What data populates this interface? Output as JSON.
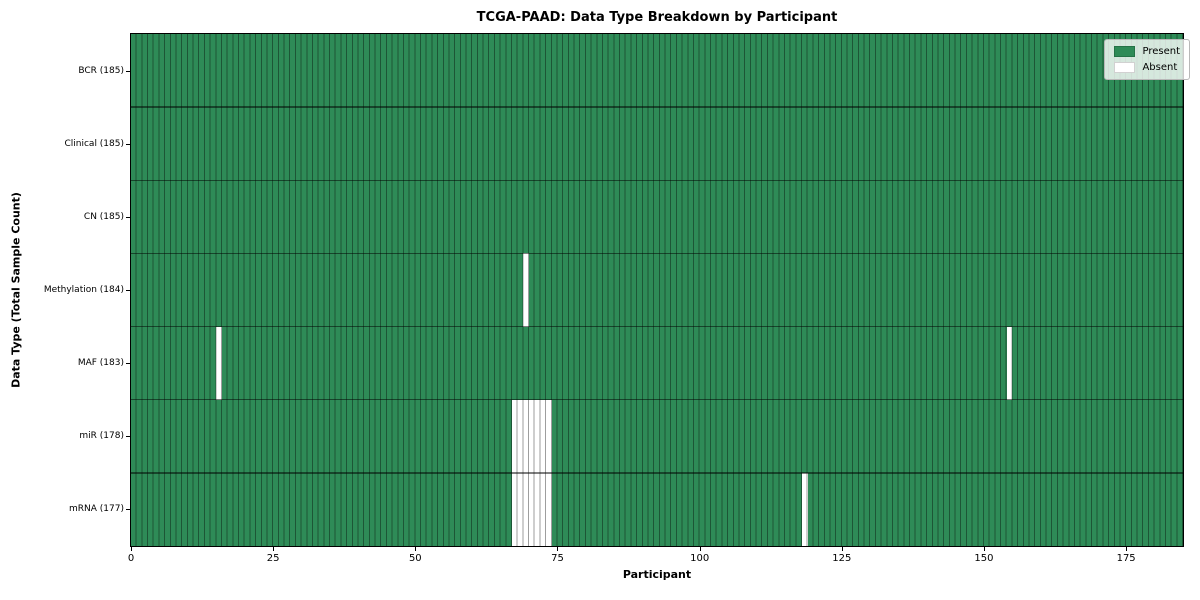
{
  "title": "TCGA-PAAD: Data Type Breakdown by Participant",
  "chart_data": {
    "type": "heatmap",
    "title": "TCGA-PAAD: Data Type Breakdown by Participant",
    "xlabel": "Participant",
    "ylabel": "Data Type (Total Sample Count)",
    "x_range": [
      0,
      185
    ],
    "n_participants": 185,
    "x_ticks": [
      0,
      25,
      50,
      75,
      100,
      125,
      150,
      175
    ],
    "grid": true,
    "legend_position": "upper right",
    "colors": {
      "present": "#2e8b57",
      "absent": "#ffffff",
      "cell_gridline": "rgba(0,0,0,0.38)"
    },
    "legend": [
      {
        "label": "Present",
        "color": "#2e8b57"
      },
      {
        "label": "Absent",
        "color": "#ffffff"
      }
    ],
    "rows": [
      {
        "label": "BCR (185)",
        "total": 185,
        "absent_participants": []
      },
      {
        "label": "Clinical (185)",
        "total": 185,
        "absent_participants": []
      },
      {
        "label": "CN (185)",
        "total": 185,
        "absent_participants": []
      },
      {
        "label": "Methylation (184)",
        "total": 184,
        "absent_participants": [
          69
        ]
      },
      {
        "label": "MAF (183)",
        "total": 183,
        "absent_participants": [
          15,
          154
        ]
      },
      {
        "label": "miR (178)",
        "total": 178,
        "absent_participants": [
          67,
          68,
          69,
          70,
          71,
          72,
          73
        ]
      },
      {
        "label": "mRNA (177)",
        "total": 177,
        "absent_participants": [
          67,
          68,
          69,
          70,
          71,
          72,
          73,
          118
        ]
      }
    ]
  }
}
